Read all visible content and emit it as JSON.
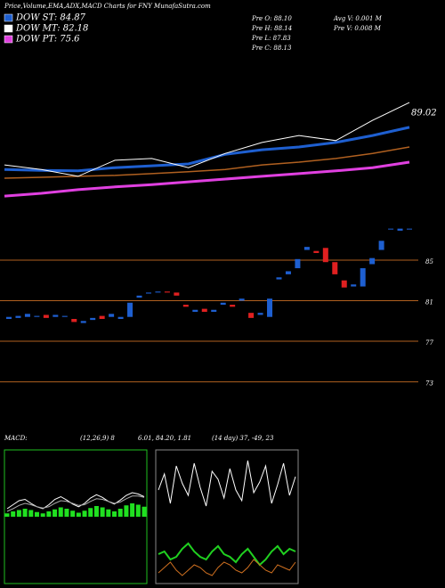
{
  "header": {
    "title": "Price,Volume,EMA,ADX,MACD Charts for FNY MunafaSutra.com",
    "legend": [
      {
        "name": "DOW ST: 84.87",
        "color": "#1e5fd0"
      },
      {
        "name": "DOW MT: 82.18",
        "color": "#ffffff"
      },
      {
        "name": "DOW PT: 75.6",
        "color": "#e040e0"
      }
    ],
    "stats": [
      "Pre O: 88.10",
      "Pre H: 88.14",
      "Pre L: 87.83",
      "Pre C: 88.13",
      "Avg V: 0.001 M",
      "Pre V: 0.008 M"
    ]
  },
  "chart_data": [
    {
      "type": "line",
      "ylim": [
        68,
        102
      ],
      "last_label": "89.02",
      "series": [
        {
          "name": "Price",
          "color": "#ffffff",
          "width": 1,
          "values": [
            77.7,
            76.7,
            75.2,
            78.7,
            79.1,
            77.1,
            80.2,
            82.6,
            84.1,
            83.0,
            87.4,
            91.3
          ]
        },
        {
          "name": "EMA Short",
          "color": "#1e5fd0",
          "width": 3,
          "values": [
            76.7,
            76.5,
            76.4,
            77.1,
            77.5,
            77.9,
            80.0,
            81.0,
            81.6,
            82.6,
            84.1,
            85.9
          ]
        },
        {
          "name": "EMA Mid",
          "color": "#b06020",
          "width": 1.5,
          "values": [
            74.8,
            75.0,
            75.2,
            75.4,
            75.8,
            76.2,
            76.7,
            77.7,
            78.3,
            79.1,
            80.2,
            81.6
          ]
        },
        {
          "name": "EMA Long",
          "color": "#e040e0",
          "width": 3,
          "values": [
            70.9,
            71.5,
            72.3,
            72.9,
            73.4,
            74.0,
            74.6,
            75.2,
            75.8,
            76.4,
            77.1,
            78.3
          ]
        }
      ]
    },
    {
      "type": "candlestick",
      "ylim": [
        72,
        90
      ],
      "yticks": [
        85,
        81,
        77,
        73
      ],
      "up_color": "#1e5fd0",
      "down_color": "#e02020",
      "open": [
        79.2,
        79.3,
        79.4,
        79.4,
        79.6,
        79.4,
        79.4,
        79.2,
        78.8,
        79.1,
        79.5,
        79.4,
        79.2,
        79.4,
        81.3,
        81.7,
        81.8,
        81.9,
        81.8,
        80.6,
        79.9,
        80.2,
        79.9,
        80.6,
        80.6,
        81.0,
        79.8,
        79.6,
        79.4,
        83.1,
        83.6,
        84.2,
        86.0,
        85.9,
        86.2,
        84.8,
        83.0,
        82.4,
        82.4,
        84.6,
        86.0,
        88.1,
        87.9,
        88.1
      ],
      "close": [
        79.4,
        79.5,
        79.7,
        79.5,
        79.3,
        79.6,
        79.5,
        78.9,
        79.0,
        79.3,
        79.2,
        79.7,
        79.4,
        80.8,
        81.5,
        81.8,
        81.9,
        81.8,
        81.5,
        80.4,
        80.1,
        79.9,
        80.1,
        80.8,
        80.4,
        81.2,
        79.3,
        79.8,
        81.2,
        83.3,
        83.9,
        85.1,
        86.3,
        85.7,
        84.8,
        83.6,
        82.3,
        82.6,
        84.2,
        85.2,
        86.9,
        88.1,
        88.1,
        88.1
      ]
    },
    {
      "type": "macd",
      "ylim": [
        -10,
        10
      ],
      "histogram": [
        0.5,
        0.8,
        1.0,
        1.2,
        1.0,
        0.7,
        0.5,
        0.8,
        1.1,
        1.4,
        1.2,
        0.9,
        0.6,
        0.9,
        1.3,
        1.6,
        1.4,
        1.1,
        0.8,
        1.2,
        1.7,
        2.0,
        1.8,
        1.5
      ],
      "series": [
        {
          "name": "MACD",
          "color": "#ffffff",
          "values": [
            1.2,
            1.8,
            2.4,
            2.6,
            2.0,
            1.5,
            1.2,
            1.8,
            2.6,
            3.0,
            2.5,
            1.9,
            1.5,
            2.0,
            2.8,
            3.3,
            2.9,
            2.3,
            1.9,
            2.5,
            3.2,
            3.6,
            3.4,
            3.0
          ]
        },
        {
          "name": "Signal",
          "color": "#aaaaaa",
          "values": [
            0.8,
            1.2,
            1.7,
            2.0,
            1.8,
            1.5,
            1.3,
            1.5,
            2.0,
            2.4,
            2.3,
            2.0,
            1.7,
            1.8,
            2.3,
            2.7,
            2.6,
            2.3,
            2.0,
            2.2,
            2.7,
            3.1,
            3.1,
            2.9
          ]
        }
      ],
      "label": "MACD:",
      "params": "(12,26,9) 8",
      "readout": "6.01, 84.20, 1.81"
    },
    {
      "type": "adx",
      "ylim": [
        0,
        100
      ],
      "series": [
        {
          "name": "ADX",
          "color": "#ffffff",
          "values": [
            70,
            82,
            60,
            88,
            75,
            66,
            90,
            72,
            58,
            84,
            78,
            64,
            86,
            70,
            62,
            92,
            68,
            76,
            88,
            60,
            74,
            90,
            66,
            80
          ]
        },
        {
          "name": "+DI",
          "color": "#20d020",
          "values": [
            22,
            24,
            18,
            20,
            26,
            30,
            24,
            20,
            18,
            24,
            28,
            22,
            20,
            16,
            22,
            26,
            20,
            14,
            18,
            24,
            28,
            22,
            26,
            24
          ]
        },
        {
          "name": "-DI",
          "color": "#d07020",
          "values": [
            8,
            12,
            16,
            10,
            6,
            10,
            14,
            12,
            8,
            6,
            12,
            16,
            14,
            10,
            8,
            12,
            18,
            14,
            10,
            8,
            14,
            12,
            10,
            16
          ]
        }
      ],
      "label": "(14 day) 37, -49, 23"
    }
  ]
}
